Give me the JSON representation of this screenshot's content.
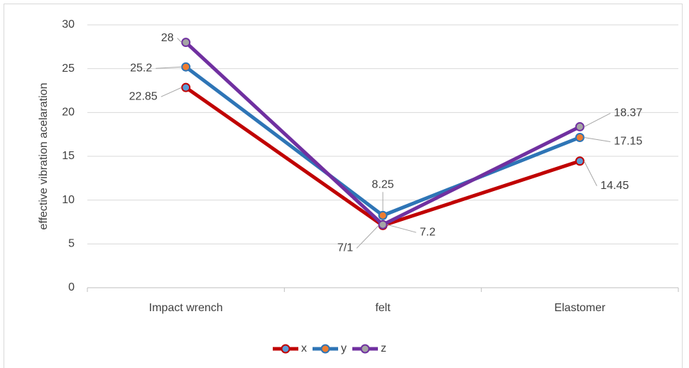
{
  "chart_data": {
    "type": "line",
    "y_label": "effective vibration acelaration",
    "categories": [
      "Impact wrench",
      "felt",
      "Elastomer"
    ],
    "series": [
      {
        "name": "x",
        "color": "#c00000",
        "marker_color": "#5b9bd5",
        "values": [
          22.85,
          7.1,
          14.45
        ],
        "value_labels": [
          "22.85",
          "7/1",
          "14.45"
        ]
      },
      {
        "name": "y",
        "color": "#2e75b6",
        "marker_color": "#ed7d31",
        "values": [
          25.2,
          8.25,
          17.15
        ]
      },
      {
        "name": "z",
        "color": "#7030a0",
        "marker_color": "#a5a5a5",
        "values": [
          28,
          7.2,
          18.37
        ]
      }
    ],
    "ylim": [
      0,
      30
    ],
    "yticks": [
      0,
      5,
      10,
      15,
      20,
      25,
      30
    ],
    "grid": true
  }
}
